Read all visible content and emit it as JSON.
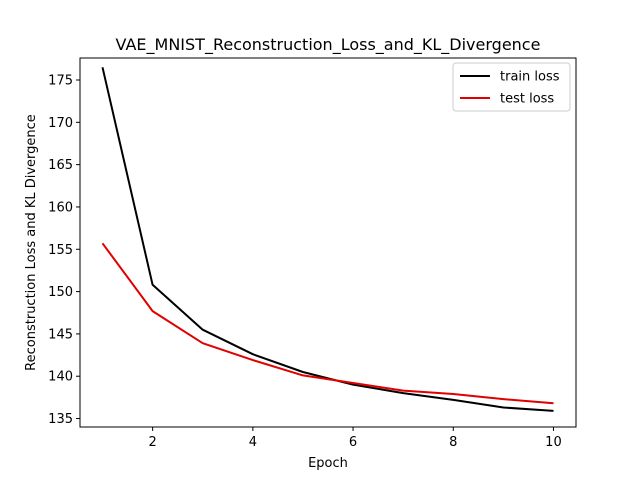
{
  "chart_data": {
    "type": "line",
    "title": "VAE_MNIST_Reconstruction_Loss_and_KL_Divergence",
    "xlabel": "Epoch",
    "ylabel": "Reconstruction Loss and KL Divergence",
    "x": [
      1,
      2,
      3,
      4,
      5,
      6,
      7,
      8,
      9,
      10
    ],
    "xlim": [
      0.55,
      10.45
    ],
    "ylim": [
      134.0,
      177.6
    ],
    "xticks": [
      2,
      4,
      6,
      8,
      10
    ],
    "yticks": [
      135,
      140,
      145,
      150,
      155,
      160,
      165,
      170,
      175
    ],
    "grid": false,
    "legend_position": "top-right",
    "series": [
      {
        "name": "train loss",
        "color": "#000000",
        "values": [
          176.5,
          150.8,
          145.5,
          142.6,
          140.5,
          139.0,
          138.0,
          137.2,
          136.3,
          135.9
        ]
      },
      {
        "name": "test loss",
        "color": "#e00000",
        "values": [
          155.7,
          147.7,
          143.9,
          141.9,
          140.1,
          139.2,
          138.3,
          137.9,
          137.3,
          136.8
        ]
      }
    ]
  }
}
